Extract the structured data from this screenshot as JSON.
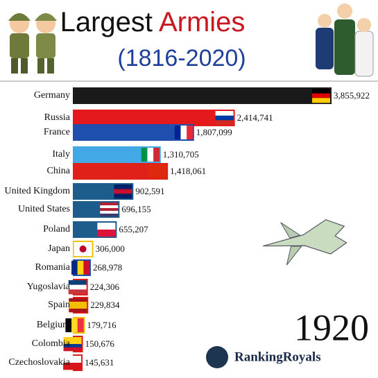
{
  "chart_data": {
    "type": "bar",
    "orientation": "horizontal",
    "title": "Largest",
    "title_highlight": "Armies",
    "subtitle": "(1816-2020)",
    "year": "1920",
    "brand": "RankingRoyals",
    "categories": [
      "Germany",
      "Russia",
      "France",
      "Italy",
      "China",
      "United Kingdom",
      "United States",
      "Poland",
      "Japan",
      "Romania",
      "Yugoslavia",
      "Spain",
      "Belgium",
      "Colombia",
      "Czechoslovakia"
    ],
    "values": [
      3855922,
      2414741,
      1807099,
      1310705,
      1418061,
      902591,
      696155,
      655207,
      306000,
      268978,
      224306,
      229834,
      179716,
      150676,
      145631
    ],
    "value_labels": [
      "3,855,922",
      "2,414,741",
      "1,807,099",
      "1,310,705",
      "1,418,061",
      "902,591",
      "696,155",
      "655,207",
      "306,000",
      "268,978",
      "224,306",
      "229,834",
      "179,716",
      "150,676",
      "145,631"
    ],
    "colors": [
      "#1a1a1a",
      "#e3191b",
      "#1f4fae",
      "#43a8e6",
      "#df2119",
      "#1d5d8b",
      "#1d5d8b",
      "#1d5d8b",
      "#f1c000",
      "#1c4fb4",
      "#e01b1b",
      "#e01b1b",
      "#f1c000",
      "#e01b1b",
      "#e01b1b"
    ]
  }
}
